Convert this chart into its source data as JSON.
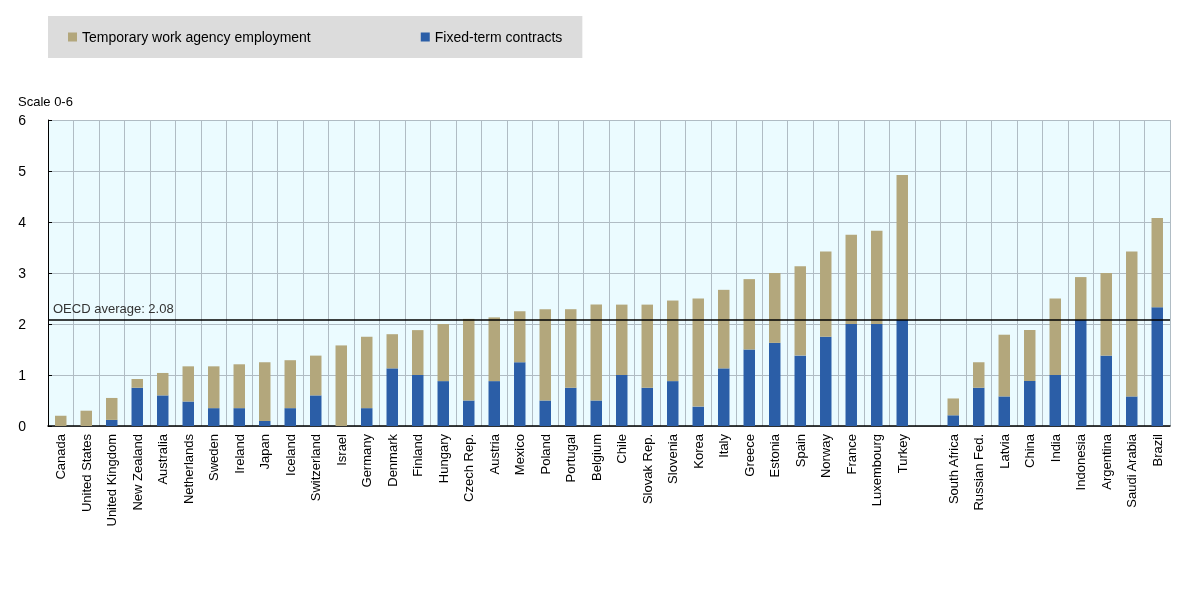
{
  "chart_data": {
    "type": "bar",
    "stacked": true,
    "ylabel": "Scale 0-6",
    "categories": [
      "Canada",
      "United States",
      "United Kingdom",
      "New Zealand",
      "Australia",
      "Netherlands",
      "Sweden",
      "Ireland",
      "Japan",
      "Iceland",
      "Switzerland",
      "Israel",
      "Germany",
      "Denmark",
      "Finland",
      "Hungary",
      "Czech Rep.",
      "Austria",
      "Mexico",
      "Poland",
      "Portugal",
      "Belgium",
      "Chile",
      "Slovak Rep.",
      "Slovenia",
      "Korea",
      "Italy",
      "Greece",
      "Estonia",
      "Spain",
      "Norway",
      "France",
      "Luxembourg",
      "Turkey",
      null,
      "South Africa",
      "Russian Fed.",
      "Latvia",
      "China",
      "India",
      "Indonesia",
      "Argentina",
      "Saudi Arabia",
      "Brazil"
    ],
    "series": [
      {
        "name": "Fixed-term contracts",
        "color": "#2b5ea7",
        "values": [
          0,
          0,
          0.12,
          0.75,
          0.6,
          0.48,
          0.35,
          0.35,
          0.1,
          0.35,
          0.6,
          0,
          0.35,
          1.13,
          1.0,
          0.88,
          0.5,
          0.88,
          1.25,
          0.5,
          0.75,
          0.5,
          1.0,
          0.75,
          0.88,
          0.38,
          1.13,
          1.5,
          1.63,
          1.38,
          1.75,
          2.0,
          2.0,
          2.08,
          null,
          0.21,
          0.75,
          0.58,
          0.88,
          1.0,
          2.08,
          1.38,
          0.58,
          2.33
        ]
      },
      {
        "name": "Temporary work agency employment",
        "color": "#b3a77c",
        "values": [
          0.2,
          0.3,
          0.43,
          0.17,
          0.44,
          0.69,
          0.82,
          0.86,
          1.15,
          0.94,
          0.78,
          1.58,
          1.4,
          0.67,
          0.88,
          1.12,
          1.6,
          1.25,
          1.0,
          1.79,
          1.54,
          1.88,
          1.38,
          1.63,
          1.58,
          2.12,
          1.54,
          1.38,
          1.37,
          1.75,
          1.67,
          1.75,
          1.83,
          2.84,
          null,
          0.33,
          0.5,
          1.21,
          1.0,
          1.5,
          0.84,
          1.62,
          2.84,
          1.75
        ]
      }
    ],
    "ylim": [
      0,
      6
    ],
    "yticks": [
      0,
      1,
      2,
      3,
      4,
      5,
      6
    ],
    "grid": true,
    "legend": "top",
    "ref_lines": [
      {
        "axis": "y",
        "value": 2.08,
        "label": "OECD average: 2.08",
        "color": "#000000"
      }
    ]
  }
}
